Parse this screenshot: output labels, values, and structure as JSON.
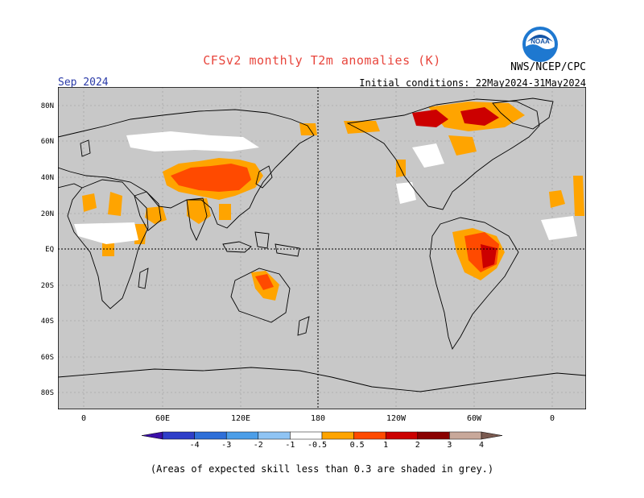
{
  "header": {
    "title": "CFSv2 monthly T2m anomalies (K)",
    "agency": "NWS/NCEP/CPC",
    "month": "Sep 2024",
    "initial_conditions": "Initial conditions: 22May2024-31May2024",
    "logo_text": "NOAA"
  },
  "map": {
    "lat_labels": [
      "80N",
      "60N",
      "40N",
      "20N",
      "EQ",
      "20S",
      "40S",
      "60S",
      "80S"
    ],
    "lon_labels": [
      "0",
      "60E",
      "120E",
      "180",
      "120W",
      "60W",
      "0"
    ],
    "background_color": "#c8c8c8",
    "coastline_color": "#000000"
  },
  "legend": {
    "labels": [
      "-4",
      "-3",
      "-2",
      "-1",
      "-0.5",
      "0.5",
      "1",
      "2",
      "3",
      "4"
    ],
    "colors": [
      "#3b0fa8",
      "#2e3ec9",
      "#2e6fd8",
      "#4c9ee8",
      "#8fc4f4",
      "#ffffff",
      "#ffa400",
      "#ff4a00",
      "#cc0000",
      "#8a0000",
      "#c8a89a",
      "#7a5a50"
    ]
  },
  "footer": {
    "note": "(Areas of expected skill less than 0.3 are shaded in grey.)"
  }
}
